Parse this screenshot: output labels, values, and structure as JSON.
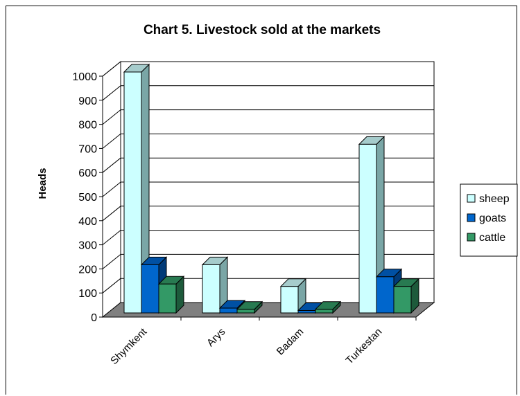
{
  "chart_data": {
    "type": "bar",
    "title": "Chart 5. Livestock sold at the markets",
    "xlabel": "",
    "ylabel": "Heads",
    "categories": [
      "Shymkent",
      "Arys",
      "Badam",
      "Turkestan"
    ],
    "ylim": [
      0,
      1000
    ],
    "yticks": [
      "0",
      "100",
      "200",
      "300",
      "400",
      "500",
      "600",
      "700",
      "800",
      "900",
      "1000"
    ],
    "grid": true,
    "legend_position": "right",
    "series": [
      {
        "name": "sheep",
        "values": [
          1000,
          200,
          110,
          700
        ],
        "color": "#ccffff",
        "side_color": "#7aa6a6",
        "top_color": "#a6cccc"
      },
      {
        "name": "goats",
        "values": [
          200,
          20,
          10,
          150
        ],
        "color": "#0066cc",
        "side_color": "#003a78",
        "top_color": "#0050a3"
      },
      {
        "name": "cattle",
        "values": [
          120,
          15,
          15,
          110
        ],
        "color": "#339966",
        "side_color": "#1d5a3b",
        "top_color": "#287a51"
      }
    ]
  }
}
